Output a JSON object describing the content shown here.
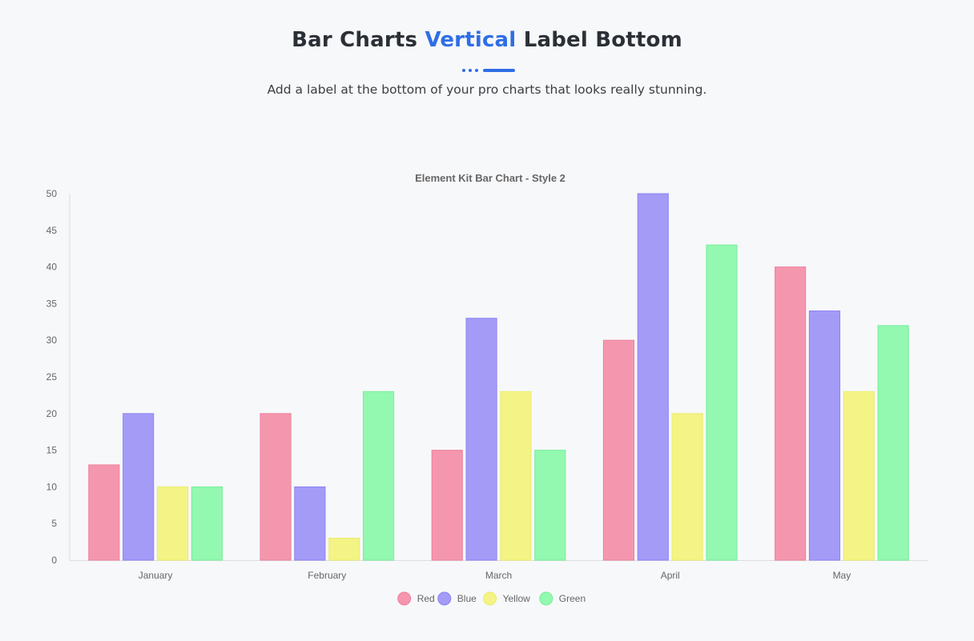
{
  "header": {
    "title_part1": "Bar Charts",
    "title_accent": "Vertical",
    "title_part2": "Label Bottom",
    "subtitle": "Add a label at the bottom of your pro charts that looks really stunning."
  },
  "colors": {
    "accent": "#2f6ee6"
  },
  "chart_data": {
    "type": "bar",
    "title": "Element Kit Bar Chart - Style 2",
    "categories": [
      "January",
      "February",
      "March",
      "April",
      "May"
    ],
    "series": [
      {
        "name": "Red",
        "values": [
          13,
          20,
          15,
          30,
          40
        ],
        "color": "#f497ae",
        "border": "#ee7f9a"
      },
      {
        "name": "Blue",
        "values": [
          20,
          10,
          33,
          50,
          34
        ],
        "color": "#a49bf7",
        "border": "#8c82f2"
      },
      {
        "name": "Yellow",
        "values": [
          10,
          3,
          23,
          20,
          23
        ],
        "color": "#f3f386",
        "border": "#ecec6c"
      },
      {
        "name": "Green",
        "values": [
          10,
          23,
          15,
          43,
          32
        ],
        "color": "#93f8b0",
        "border": "#74ef98"
      }
    ],
    "ylim": [
      0,
      50
    ],
    "yticks": [
      0,
      5,
      10,
      15,
      20,
      25,
      30,
      35,
      40,
      45,
      50
    ],
    "grid": false,
    "legend_position": "bottom"
  }
}
